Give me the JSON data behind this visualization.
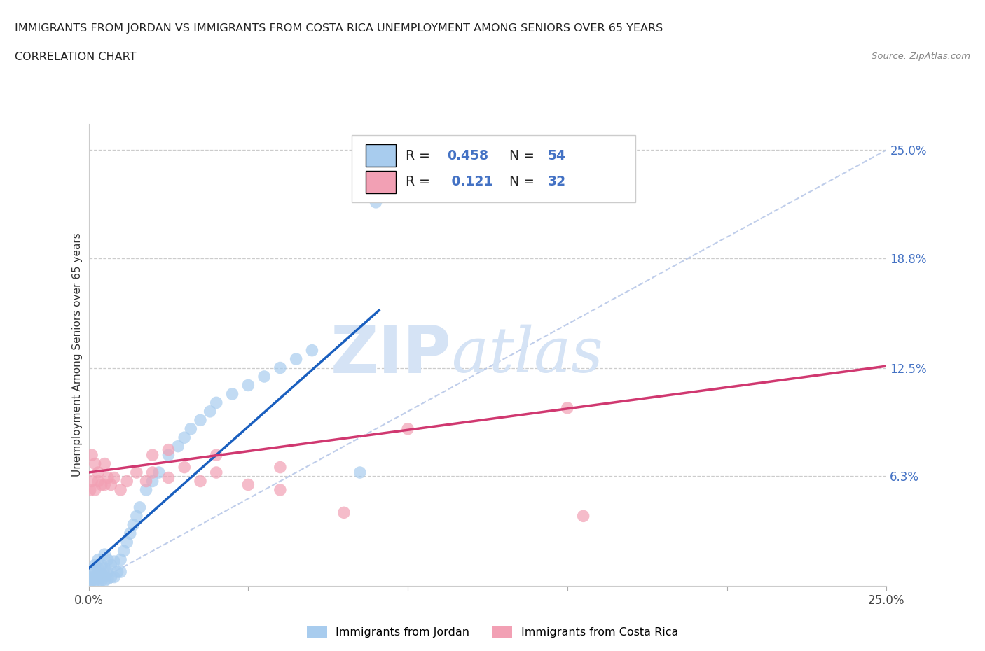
{
  "title_line1": "IMMIGRANTS FROM JORDAN VS IMMIGRANTS FROM COSTA RICA UNEMPLOYMENT AMONG SENIORS OVER 65 YEARS",
  "title_line2": "CORRELATION CHART",
  "source_text": "Source: ZipAtlas.com",
  "ylabel": "Unemployment Among Seniors over 65 years",
  "xlim": [
    0.0,
    0.25
  ],
  "ylim": [
    0.0,
    0.265
  ],
  "jordan_R": 0.458,
  "jordan_N": 54,
  "costa_rica_R": 0.121,
  "costa_rica_N": 32,
  "jordan_color": "#A8CCEE",
  "costa_rica_color": "#F2A0B4",
  "jordan_trend_color": "#1A5FBF",
  "costa_rica_trend_color": "#D03870",
  "diagonal_color": "#B8C8E8",
  "jordan_trend_x0": 0.0,
  "jordan_trend_y0": 0.01,
  "jordan_trend_x1": 0.091,
  "jordan_trend_y1": 0.158,
  "costa_rica_trend_x0": 0.0,
  "costa_rica_trend_y0": 0.065,
  "costa_rica_trend_x1": 0.25,
  "costa_rica_trend_y1": 0.126,
  "jordan_scatter_x": [
    0.0005,
    0.001,
    0.001,
    0.001,
    0.002,
    0.002,
    0.002,
    0.002,
    0.003,
    0.003,
    0.003,
    0.003,
    0.003,
    0.004,
    0.004,
    0.004,
    0.005,
    0.005,
    0.005,
    0.005,
    0.006,
    0.006,
    0.006,
    0.007,
    0.007,
    0.008,
    0.008,
    0.009,
    0.01,
    0.01,
    0.011,
    0.012,
    0.013,
    0.014,
    0.015,
    0.016,
    0.018,
    0.02,
    0.022,
    0.025,
    0.028,
    0.03,
    0.032,
    0.035,
    0.038,
    0.04,
    0.045,
    0.05,
    0.055,
    0.06,
    0.065,
    0.07,
    0.085,
    0.09
  ],
  "jordan_scatter_y": [
    0.002,
    0.003,
    0.005,
    0.008,
    0.003,
    0.005,
    0.008,
    0.012,
    0.002,
    0.004,
    0.007,
    0.01,
    0.015,
    0.003,
    0.007,
    0.012,
    0.003,
    0.006,
    0.01,
    0.018,
    0.004,
    0.008,
    0.015,
    0.005,
    0.012,
    0.005,
    0.014,
    0.008,
    0.008,
    0.015,
    0.02,
    0.025,
    0.03,
    0.035,
    0.04,
    0.045,
    0.055,
    0.06,
    0.065,
    0.075,
    0.08,
    0.085,
    0.09,
    0.095,
    0.1,
    0.105,
    0.11,
    0.115,
    0.12,
    0.125,
    0.13,
    0.135,
    0.065,
    0.22
  ],
  "costa_rica_scatter_x": [
    0.0005,
    0.001,
    0.001,
    0.002,
    0.002,
    0.003,
    0.003,
    0.004,
    0.005,
    0.005,
    0.006,
    0.007,
    0.008,
    0.01,
    0.012,
    0.015,
    0.018,
    0.02,
    0.02,
    0.025,
    0.025,
    0.03,
    0.035,
    0.04,
    0.04,
    0.05,
    0.06,
    0.06,
    0.08,
    0.1,
    0.15,
    0.155
  ],
  "costa_rica_scatter_y": [
    0.055,
    0.06,
    0.075,
    0.055,
    0.07,
    0.06,
    0.065,
    0.058,
    0.058,
    0.07,
    0.062,
    0.058,
    0.062,
    0.055,
    0.06,
    0.065,
    0.06,
    0.065,
    0.075,
    0.062,
    0.078,
    0.068,
    0.06,
    0.065,
    0.075,
    0.058,
    0.055,
    0.068,
    0.042,
    0.09,
    0.102,
    0.04
  ]
}
